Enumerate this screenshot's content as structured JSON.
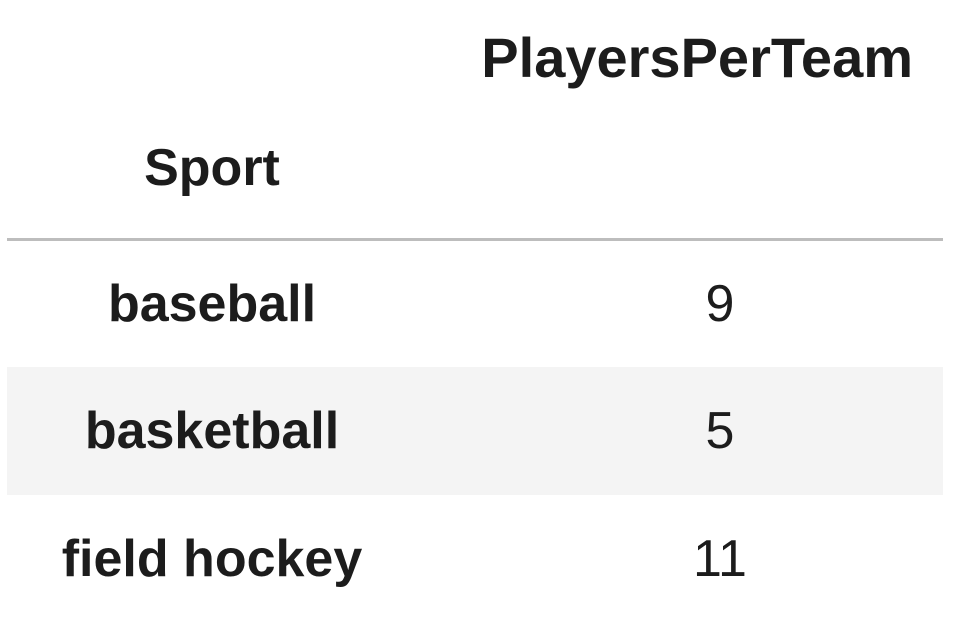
{
  "table": {
    "column_header": "PlayersPerTeam",
    "index_name": "Sport",
    "rows": [
      {
        "sport": "baseball",
        "players": "9"
      },
      {
        "sport": "basketball",
        "players": "5"
      },
      {
        "sport": "field hockey",
        "players": "11"
      }
    ]
  }
}
